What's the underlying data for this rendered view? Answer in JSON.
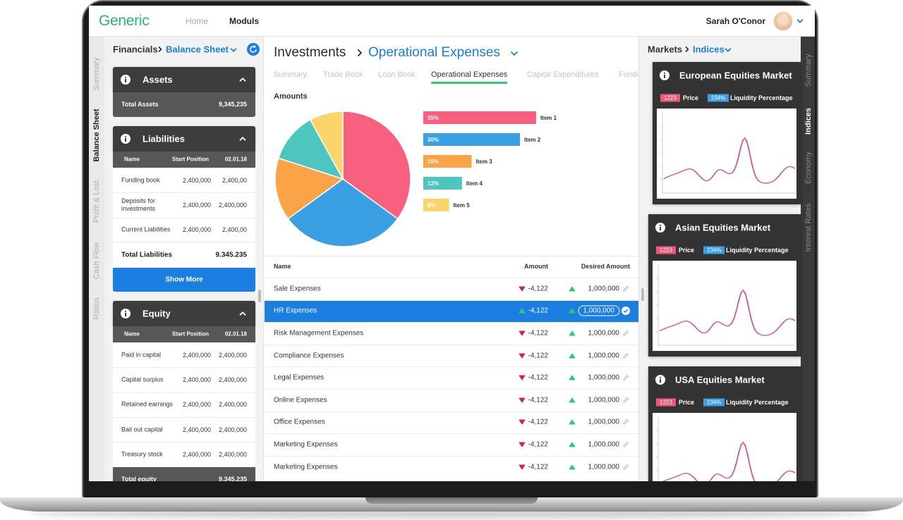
{
  "header": {
    "logo": "Generic",
    "nav": [
      "Home",
      "Moduls"
    ],
    "active_nav": 1,
    "user": "Sarah O'Conor"
  },
  "left_tabs": {
    "items": [
      "Summary",
      "Balance Sheet",
      "Profit & Lost",
      "Cash Flow",
      "Ratios"
    ],
    "active": 1
  },
  "left_panel": {
    "breadcrumb": [
      "Financials",
      "Balance Sheet"
    ],
    "assets": {
      "title": "Assets",
      "total": [
        "Total Assets",
        "9,345,235"
      ]
    },
    "liabilities": {
      "title": "Liabilities",
      "columns": [
        "Name",
        "Start Position",
        "02.01.18"
      ],
      "rows": [
        [
          "Funding book",
          "2,400,000",
          "2,400,00"
        ],
        [
          "Deposits for investments",
          "2,400,000",
          "2,400,000"
        ],
        [
          "Current Liabilities",
          "2,400,000",
          "2,400,00"
        ]
      ],
      "total": [
        "Total Liabilities",
        "9.345.235"
      ],
      "button": "Show More"
    },
    "equity": {
      "title": "Equity",
      "columns": [
        "Name",
        "Start Position",
        "02.01.18"
      ],
      "rows": [
        [
          "Paid in capital",
          "2,400,000",
          "2,400,000"
        ],
        [
          "Capital surplus",
          "2,400,000",
          "2,400,000"
        ],
        [
          "Retained earnings",
          "2,400,000",
          "2,400,000"
        ],
        [
          "Bail out capital",
          "2,400,000",
          "2,400,000"
        ],
        [
          "Treasury stock",
          "2,400,000",
          "2,400,000"
        ]
      ],
      "total": [
        "Total equity",
        "9,345,235"
      ]
    }
  },
  "center": {
    "breadcrumb": [
      "Investments",
      "Operational Expenses"
    ],
    "tabs": [
      "Summary",
      "Trade Book",
      "Loan Book",
      "Operational Expenses",
      "Capital Expenditures",
      "Fundi"
    ],
    "active_tab": 3,
    "amounts": {
      "title": "Amounts",
      "items": [
        {
          "name": "Item 1",
          "value": 35,
          "label": "35%",
          "color": "#f7607f"
        },
        {
          "name": "Item 2",
          "value": 30,
          "label": "30%",
          "color": "#3aa0e3"
        },
        {
          "name": "Item 3",
          "value": 15,
          "label": "15%",
          "color": "#fba347"
        },
        {
          "name": "Item 4",
          "value": 12,
          "label": "12%",
          "color": "#4ec6c0"
        },
        {
          "name": "Item 5",
          "value": 8,
          "label": "8%",
          "color": "#fcd56a"
        }
      ]
    },
    "table": {
      "columns": [
        "Name",
        "Amount",
        "Desired Amount"
      ],
      "selected": 1,
      "rows": [
        {
          "name": "Sale Expenses",
          "amount": "-4,122",
          "trend": "down",
          "desired": "1,000,000"
        },
        {
          "name": "HR Expenses",
          "amount": "-4,122",
          "trend": "up",
          "desired": "1,000,000"
        },
        {
          "name": "Risk Management Expenses",
          "amount": "-4,122",
          "trend": "down",
          "desired": "1,000,000"
        },
        {
          "name": "Compliance Expenses",
          "amount": "-4,122",
          "trend": "down",
          "desired": "1,000,000"
        },
        {
          "name": "Legal Expenses",
          "amount": "-4,122",
          "trend": "down",
          "desired": "1,000,000"
        },
        {
          "name": "Online Expenses",
          "amount": "-4,122",
          "trend": "down",
          "desired": "1,000,000"
        },
        {
          "name": "Office Expenses",
          "amount": "-4,122",
          "trend": "down",
          "desired": "1,000,000"
        },
        {
          "name": "Marketing Expenses",
          "amount": "-4,122",
          "trend": "down",
          "desired": "1,000,000"
        },
        {
          "name": "Marketing Expenses",
          "amount": "-4,122",
          "trend": "down",
          "desired": "1,000,000"
        }
      ]
    }
  },
  "right_panel": {
    "breadcrumb": [
      "Markets",
      "Indices"
    ],
    "markets": [
      {
        "title": "European Equities Market",
        "price": "1223",
        "price_label": "Price",
        "liquidity": "234%",
        "liquidity_label": "Liquidity Percentage"
      },
      {
        "title": "Asian Equities Market",
        "price": "1223",
        "price_label": "Price",
        "liquidity": "234%",
        "liquidity_label": "Liquidity Percentage"
      },
      {
        "title": "USA Equities Market",
        "price": "1223",
        "price_label": "Price",
        "liquidity": "234%",
        "liquidity_label": "Liquidity Percentage"
      }
    ]
  },
  "right_tabs": {
    "items": [
      "Summary",
      "Indices",
      "Economy",
      "Interest Rates"
    ],
    "active": 1
  }
}
